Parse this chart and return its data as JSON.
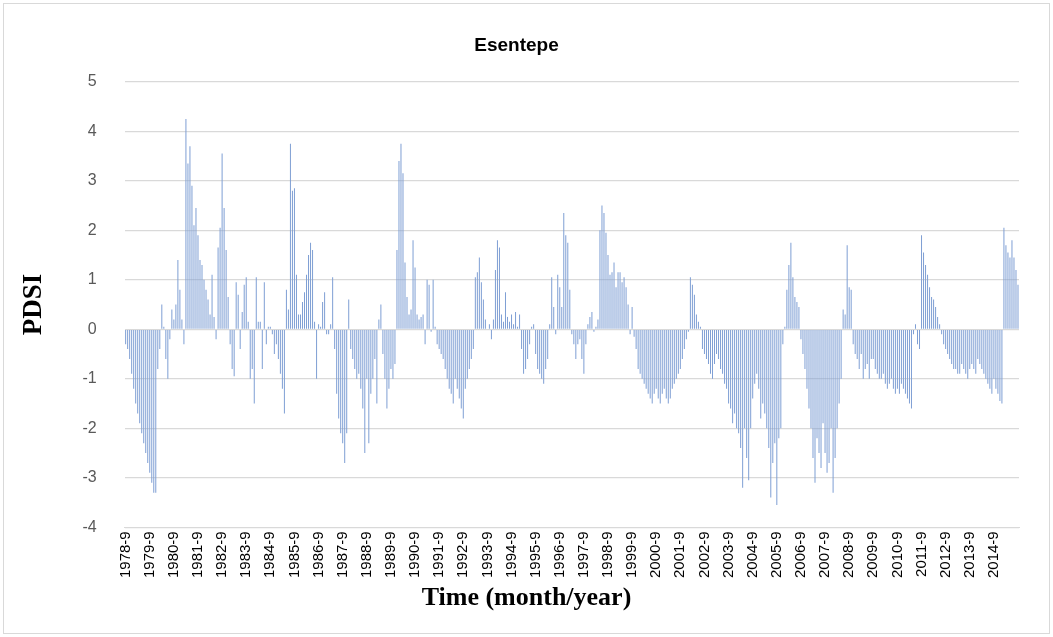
{
  "chart_data": {
    "type": "bar",
    "title": "Esentepe",
    "xlabel": "Time (month/year)",
    "ylabel": "PDSI",
    "color": "#7f9fd4",
    "ylim": [
      -4,
      5
    ],
    "yticks": [
      -4,
      -3,
      -2,
      -1,
      0,
      1,
      2,
      3,
      4,
      5
    ],
    "grid": "y",
    "categories": [
      "1978-9",
      null,
      null,
      null,
      null,
      null,
      null,
      null,
      null,
      null,
      null,
      null,
      "1979-9",
      null,
      null,
      null,
      null,
      null,
      null,
      null,
      null,
      null,
      null,
      null,
      "1980-9",
      null,
      null,
      null,
      null,
      null,
      null,
      null,
      null,
      null,
      null,
      null,
      "1981-9",
      null,
      null,
      null,
      null,
      null,
      null,
      null,
      null,
      null,
      null,
      null,
      "1982-9",
      null,
      null,
      null,
      null,
      null,
      null,
      null,
      null,
      null,
      null,
      null,
      "1983-9",
      null,
      null,
      null,
      null,
      null,
      null,
      null,
      null,
      null,
      null,
      null,
      "1984-9",
      null,
      null,
      null,
      null,
      null,
      null,
      null,
      null,
      null,
      null,
      null,
      "1985-9",
      null,
      null,
      null,
      null,
      null,
      null,
      null,
      null,
      null,
      null,
      null,
      "1986-9",
      null,
      null,
      null,
      null,
      null,
      null,
      null,
      null,
      null,
      null,
      null,
      "1987-9",
      null,
      null,
      null,
      null,
      null,
      null,
      null,
      null,
      null,
      null,
      null,
      "1988-9",
      null,
      null,
      null,
      null,
      null,
      null,
      null,
      null,
      null,
      null,
      null,
      "1989-9",
      null,
      null,
      null,
      null,
      null,
      null,
      null,
      null,
      null,
      null,
      null,
      "1990-9",
      null,
      null,
      null,
      null,
      null,
      null,
      null,
      null,
      null,
      null,
      null,
      "1991-9",
      null,
      null,
      null,
      null,
      null,
      null,
      null,
      null,
      null,
      null,
      null,
      "1992-9",
      null,
      null,
      null,
      null,
      null,
      null,
      null,
      null,
      null,
      null,
      null,
      "1993-9",
      null,
      null,
      null,
      null,
      null,
      null,
      null,
      null,
      null,
      null,
      null,
      "1994-9",
      null,
      null,
      null,
      null,
      null,
      null,
      null,
      null,
      null,
      null,
      null,
      "1995-9",
      null,
      null,
      null,
      null,
      null,
      null,
      null,
      null,
      null,
      null,
      null,
      "1996-9",
      null,
      null,
      null,
      null,
      null,
      null,
      null,
      null,
      null,
      null,
      null,
      "1997-9",
      null,
      null,
      null,
      null,
      null,
      null,
      null,
      null,
      null,
      null,
      null,
      "1998-9",
      null,
      null,
      null,
      null,
      null,
      null,
      null,
      null,
      null,
      null,
      null,
      "1999-9",
      null,
      null,
      null,
      null,
      null,
      null,
      null,
      null,
      null,
      null,
      null,
      "2000-9",
      null,
      null,
      null,
      null,
      null,
      null,
      null,
      null,
      null,
      null,
      null,
      "2001-9",
      null,
      null,
      null,
      null,
      null,
      null,
      null,
      null,
      null,
      null,
      null,
      "2002-9",
      null,
      null,
      null,
      null,
      null,
      null,
      null,
      null,
      null,
      null,
      null,
      "2003-9",
      null,
      null,
      null,
      null,
      null,
      null,
      null,
      null,
      null,
      null,
      null,
      "2004-9",
      null,
      null,
      null,
      null,
      null,
      null,
      null,
      null,
      null,
      null,
      null,
      "2005-9",
      null,
      null,
      null,
      null,
      null,
      null,
      null,
      null,
      null,
      null,
      null,
      "2006-9",
      null,
      null,
      null,
      null,
      null,
      null,
      null,
      null,
      null,
      null,
      null,
      "2007-9",
      null,
      null,
      null,
      null,
      null,
      null,
      null,
      null,
      null,
      null,
      null,
      "2008-9",
      null,
      null,
      null,
      null,
      null,
      null,
      null,
      null,
      null,
      null,
      null,
      "2009-9",
      null,
      null,
      null,
      null,
      null,
      null,
      null,
      null,
      null,
      null,
      null,
      "2010-9",
      null,
      null,
      null,
      null,
      null,
      null,
      null,
      null,
      null,
      null,
      null,
      "2011-9",
      null,
      null,
      null,
      null,
      null,
      null,
      null,
      null,
      null,
      null,
      null,
      "2012-9",
      null,
      null,
      null,
      null,
      null,
      null,
      null,
      null,
      null,
      null,
      null,
      "2013-9",
      null,
      null,
      null,
      null,
      null,
      null,
      null,
      null,
      null,
      null,
      null,
      "2014-9",
      null,
      null,
      null,
      null,
      null,
      null,
      null,
      null,
      null,
      null,
      null,
      null
    ],
    "values": [
      -0.3,
      -0.4,
      -0.6,
      -0.9,
      -1.2,
      -1.5,
      -1.7,
      -1.9,
      -2.1,
      -2.3,
      -2.5,
      -2.7,
      -2.9,
      -3.1,
      -3.3,
      -3.3,
      -0.8,
      -0.4,
      0.5,
      0.05,
      -0.6,
      -1.0,
      -0.2,
      0.4,
      0.2,
      0.5,
      1.4,
      0.8,
      0.2,
      -0.3,
      4.25,
      3.35,
      3.7,
      2.9,
      2.1,
      2.45,
      1.9,
      1.4,
      1.3,
      1.0,
      0.8,
      0.6,
      0.3,
      1.1,
      0.25,
      -0.2,
      1.65,
      2.05,
      3.55,
      2.45,
      1.6,
      0.65,
      -0.3,
      -0.8,
      -0.95,
      0.95,
      0.7,
      -0.4,
      0.35,
      0.9,
      1.05,
      0.15,
      -1.0,
      -0.8,
      -1.5,
      1.05,
      0.15,
      0.15,
      -0.8,
      0.95,
      -0.3,
      0.05,
      0.05,
      -0.1,
      -0.5,
      -0.3,
      -0.6,
      -0.9,
      -1.2,
      -1.7,
      0.8,
      0.4,
      3.75,
      2.8,
      2.85,
      1.1,
      0.3,
      0.3,
      0.55,
      0.75,
      1.1,
      1.5,
      1.75,
      1.6,
      0.15,
      -1.0,
      0.1,
      0.05,
      0.55,
      0.75,
      -0.1,
      -0.1,
      0.1,
      1.05,
      -0.4,
      -1.3,
      -1.8,
      -2.1,
      -2.3,
      -2.7,
      -2.1,
      0.6,
      -0.4,
      -0.6,
      -0.8,
      -1.0,
      -0.9,
      -1.2,
      -1.6,
      -2.5,
      -1.0,
      -2.3,
      -1.3,
      -1.0,
      -0.6,
      -1.5,
      0.2,
      0.5,
      -0.5,
      -1.0,
      -1.6,
      -1.2,
      -0.8,
      -1.0,
      -0.7,
      1.6,
      3.4,
      3.75,
      3.15,
      1.35,
      0.65,
      0.3,
      0.4,
      1.8,
      1.25,
      0.3,
      0.2,
      0.25,
      0.3,
      -0.3,
      1.0,
      0.9,
      -0.05,
      1.0,
      0.05,
      -0.3,
      -0.4,
      -0.5,
      -0.6,
      -0.8,
      -1.0,
      -1.2,
      -1.3,
      -1.5,
      -1.0,
      -1.2,
      -1.4,
      -1.6,
      -1.8,
      -1.2,
      -1.0,
      -0.8,
      -0.6,
      -0.4,
      1.05,
      1.15,
      1.45,
      0.95,
      0.6,
      0.2,
      0.0,
      0.1,
      -0.2,
      0.2,
      1.2,
      1.8,
      1.65,
      0.3,
      0.15,
      0.75,
      0.25,
      0.15,
      0.3,
      0.1,
      0.35,
      0.05,
      0.3,
      -0.4,
      -0.9,
      -0.8,
      -0.6,
      -0.3,
      0.05,
      0.1,
      -0.5,
      -0.8,
      -0.9,
      -1.0,
      -1.1,
      -0.8,
      -0.6,
      0.1,
      1.05,
      0.45,
      -0.1,
      1.1,
      0.85,
      0.45,
      2.35,
      1.9,
      1.75,
      0.8,
      -0.1,
      -0.3,
      -0.6,
      -0.3,
      -0.2,
      -0.6,
      -0.9,
      -0.3,
      0.1,
      0.25,
      0.35,
      -0.05,
      0.05,
      0.2,
      2.0,
      2.5,
      2.35,
      1.95,
      1.5,
      1.1,
      1.15,
      1.35,
      0.85,
      1.15,
      1.15,
      0.95,
      1.05,
      0.85,
      0.5,
      -0.1,
      0.45,
      -0.15,
      -0.4,
      -0.8,
      -0.9,
      -1.0,
      -1.1,
      -1.2,
      -1.3,
      -1.4,
      -1.5,
      -1.3,
      -1.2,
      -1.4,
      -1.5,
      -1.3,
      -1.2,
      -1.4,
      -1.5,
      -1.4,
      -1.2,
      -1.1,
      -1.0,
      -0.9,
      -0.8,
      -0.6,
      -0.4,
      -0.2,
      -0.05,
      1.05,
      0.9,
      0.7,
      0.3,
      0.15,
      0.05,
      -0.4,
      -0.5,
      -0.6,
      -0.7,
      -0.9,
      -1.0,
      -0.7,
      -0.5,
      -0.6,
      -0.8,
      -0.9,
      -1.1,
      -1.2,
      -1.5,
      -1.6,
      -1.9,
      -1.7,
      -2.0,
      -2.1,
      -2.4,
      -3.2,
      -2.0,
      -2.6,
      -3.05,
      -2.0,
      -1.4,
      -1.1,
      -0.9,
      -1.2,
      -1.8,
      -1.5,
      -1.7,
      -2.0,
      -2.4,
      -3.4,
      -2.7,
      -2.3,
      -3.55,
      -2.2,
      -2.0,
      -0.3,
      0.05,
      0.8,
      1.3,
      1.75,
      1.05,
      0.65,
      0.55,
      0.45,
      -0.2,
      -0.5,
      -0.8,
      -1.2,
      -1.6,
      -2.0,
      -2.6,
      -3.1,
      -2.2,
      -2.5,
      -2.8,
      -1.9,
      -2.5,
      -2.9,
      -2.7,
      -2.0,
      -3.3,
      -2.6,
      -2.0,
      -1.5,
      -1.0,
      0.4,
      0.3,
      1.7,
      0.85,
      0.8,
      -0.3,
      -0.5,
      -0.6,
      -0.8,
      -0.5,
      -1.0,
      -0.8,
      -0.7,
      -1.0,
      -0.6,
      -0.6,
      -0.8,
      -0.9,
      -1.0,
      -1.0,
      -0.9,
      -1.1,
      -1.2,
      -1.1,
      -1.0,
      -1.2,
      -1.3,
      -1.2,
      -1.3,
      -1.1,
      -1.2,
      -1.3,
      -1.4,
      -1.5,
      -1.6,
      -0.1,
      0.1,
      -0.3,
      -0.4,
      1.9,
      1.55,
      1.3,
      1.1,
      0.85,
      0.65,
      0.6,
      0.45,
      0.25,
      0.1,
      -0.1,
      -0.3,
      -0.4,
      -0.5,
      -0.6,
      -0.7,
      -0.8,
      -0.8,
      -0.9,
      -0.9,
      -0.7,
      -0.8,
      -0.9,
      -1.0,
      -0.8,
      -0.7,
      -0.8,
      -0.9,
      -0.6,
      -0.7,
      -0.8,
      -0.9,
      -1.0,
      -1.1,
      -1.2,
      -1.3,
      -1.0,
      -1.2,
      -1.3,
      -1.45,
      -1.5,
      2.05,
      1.7,
      1.55,
      1.45,
      1.8,
      1.45,
      1.2,
      0.9
    ]
  }
}
